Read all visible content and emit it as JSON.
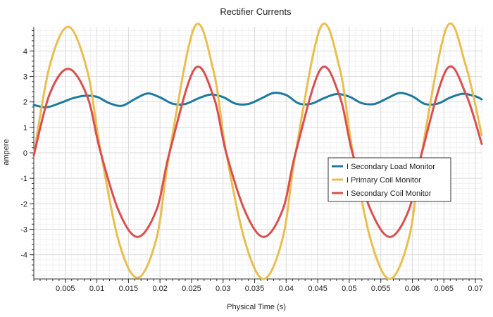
{
  "chart_data": {
    "type": "line",
    "title": "Rectifier Currents",
    "xlabel": "Physical Time (s)",
    "ylabel": "ampere",
    "xlim": [
      0,
      0.071
    ],
    "ylim": [
      -4.95,
      4.95
    ],
    "x_ticks": [
      0.005,
      0.01,
      0.015,
      0.02,
      0.025,
      0.03,
      0.035,
      0.04,
      0.045,
      0.05,
      0.055,
      0.06,
      0.065,
      0.07
    ],
    "x_tick_labels": [
      "0.005",
      "0.01",
      "0.015",
      "0.02",
      "0.025",
      "0.03",
      "0.035",
      "0.04",
      "0.045",
      "0.05",
      "0.055",
      "0.06",
      "0.065",
      "0.07"
    ],
    "y_ticks": [
      -4,
      -3,
      -2,
      -1,
      0,
      1,
      2,
      3,
      4
    ],
    "y_tick_labels": [
      "-4",
      "-3",
      "-2",
      "-1",
      "0",
      "1",
      "2",
      "3",
      "4"
    ],
    "grid": true,
    "legend_position": "center-right",
    "series": [
      {
        "name": "I Secondary Load Monitor",
        "color": "#1c7a9c",
        "x": [
          0,
          0.002,
          0.004,
          0.006,
          0.008,
          0.01,
          0.012,
          0.014,
          0.016,
          0.018,
          0.02,
          0.022,
          0.024,
          0.026,
          0.028,
          0.03,
          0.032,
          0.034,
          0.036,
          0.038,
          0.04,
          0.042,
          0.044,
          0.046,
          0.048,
          0.05,
          0.052,
          0.054,
          0.056,
          0.058,
          0.06,
          0.062,
          0.064,
          0.066,
          0.068,
          0.07,
          0.071
        ],
        "values": [
          1.88,
          1.79,
          1.94,
          2.13,
          2.24,
          2.2,
          1.95,
          1.85,
          2.11,
          2.33,
          2.18,
          1.93,
          1.92,
          2.13,
          2.29,
          2.19,
          1.93,
          1.92,
          2.13,
          2.35,
          2.27,
          1.94,
          1.93,
          2.15,
          2.31,
          2.21,
          1.95,
          1.92,
          2.14,
          2.35,
          2.22,
          1.92,
          1.93,
          2.17,
          2.32,
          2.22,
          2.1
        ]
      },
      {
        "name": "I Primary Coil Monitor",
        "color": "#e8bf4f",
        "x": [
          0,
          0.0025,
          0.0055,
          0.0085,
          0.0105,
          0.0135,
          0.0165,
          0.0195,
          0.0215,
          0.0255,
          0.0285,
          0.0305,
          0.0335,
          0.0365,
          0.0395,
          0.0415,
          0.0455,
          0.0485,
          0.0505,
          0.0535,
          0.0565,
          0.0595,
          0.0615,
          0.0655,
          0.0685,
          0.071
        ],
        "values": [
          -0.1,
          3.4,
          4.95,
          3.2,
          0.2,
          -3.5,
          -4.9,
          -3.3,
          0.0,
          4.95,
          3.2,
          0.0,
          -3.5,
          -4.95,
          -3.3,
          0.0,
          4.95,
          3.3,
          0.1,
          -3.5,
          -4.95,
          -3.3,
          0.0,
          4.95,
          3.4,
          0.7
        ]
      },
      {
        "name": "I Secondary Coil Monitor",
        "color": "#d94f4f",
        "x": [
          0,
          0.0025,
          0.0055,
          0.0085,
          0.0105,
          0.0135,
          0.0165,
          0.0195,
          0.0215,
          0.0255,
          0.0285,
          0.0305,
          0.0335,
          0.0365,
          0.0395,
          0.0415,
          0.0455,
          0.0485,
          0.0505,
          0.0535,
          0.0565,
          0.0595,
          0.0615,
          0.0655,
          0.0685,
          0.071
        ],
        "values": [
          -0.1,
          2.3,
          3.3,
          2.2,
          0.1,
          -2.3,
          -3.3,
          -2.2,
          0.0,
          3.3,
          2.2,
          0.0,
          -2.3,
          -3.3,
          -2.2,
          0.0,
          3.3,
          2.2,
          0.0,
          -2.3,
          -3.3,
          -2.2,
          0.0,
          3.3,
          2.3,
          0.35
        ]
      }
    ]
  }
}
